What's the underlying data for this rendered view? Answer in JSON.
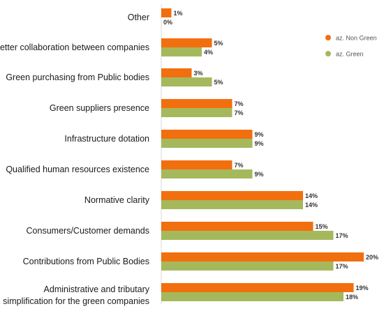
{
  "chart_data": {
    "type": "bar",
    "orientation": "horizontal",
    "categories": [
      "Other",
      "Better collaboration between companies",
      "Green purchasing from Public bodies",
      "Green suppliers presence",
      "Infrastructure dotation",
      "Qualified human resources existence",
      "Normative clarity",
      "Consumers/Customer demands",
      "Contributions from Public Bodies",
      "Administrative and tributary simplification for the green companies"
    ],
    "series": [
      {
        "name": "az. Non Green",
        "color": "#f26f0f",
        "values": [
          1,
          5,
          3,
          7,
          9,
          7,
          14,
          15,
          20,
          19
        ],
        "labels": [
          "1%",
          "5%",
          "3%",
          "7%",
          "9%",
          "7%",
          "14%",
          "15%",
          "20%",
          "19%"
        ]
      },
      {
        "name": "az. Green",
        "color": "#a5b95c",
        "values": [
          0,
          4,
          5,
          7,
          9,
          9,
          14,
          17,
          17,
          18
        ],
        "labels": [
          "0%",
          "4%",
          "5%",
          "7%",
          "9%",
          "9%",
          "14%",
          "17%",
          "17%",
          "18%"
        ]
      }
    ],
    "xlim": [
      0,
      20
    ],
    "grid": false,
    "legend_position": "top-right"
  }
}
